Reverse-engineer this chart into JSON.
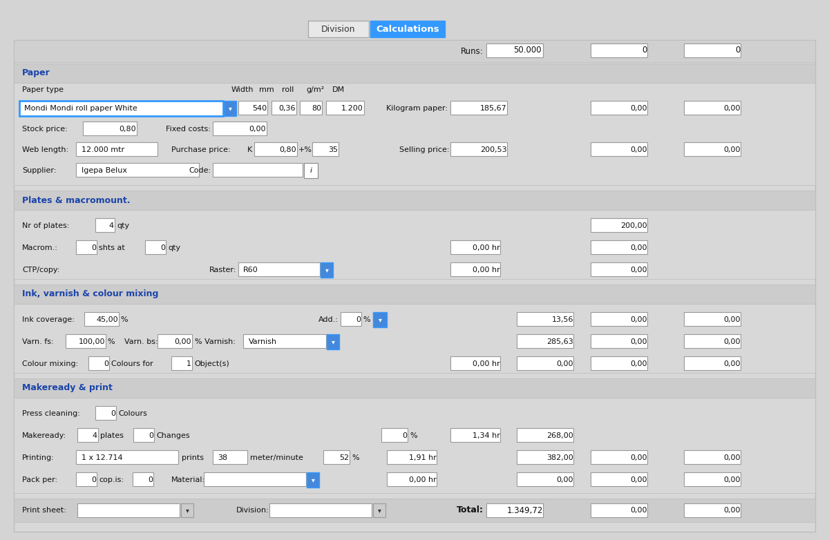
{
  "bg_color": "#d4d4d4",
  "panel_bg": "#d4d4d4",
  "section_bg": "#c8c8c8",
  "white": "#ffffff",
  "blue_btn": "#3399ff",
  "blue_btn2": "#4488dd",
  "section_header_color": "#1a44aa",
  "border_color": "#999999",
  "text_color": "#111111",
  "tab_division_text": "Division",
  "tab_calculations_text": "Calculations",
  "runs_label": "Runs:",
  "runs_val1": "50.000",
  "runs_val2": "0",
  "runs_val3": "0",
  "paper_section": "Paper",
  "paper_type_label": "Paper type",
  "width_label": "Width",
  "mm_label": "mm",
  "roll_label": "roll",
  "gm2_label": "g/m²",
  "dm_label": "DM",
  "paper_type_val": "Mondi Mondi roll paper White",
  "width_val": "540",
  "roll_val": "0,36",
  "gm2_val": "80",
  "dm_val": "1.200",
  "kg_paper_label": "Kilogram paper:",
  "kg_val1": "185,67",
  "kg_val2": "0,00",
  "kg_val3": "0,00",
  "stock_price_label": "Stock price:",
  "stock_price_val": "0,80",
  "fixed_costs_label": "Fixed costs:",
  "fixed_costs_val": "0,00",
  "web_length_label": "Web length:",
  "web_length_val": "12.000 mtr",
  "purchase_price_label": "Purchase price:",
  "purchase_k": "K",
  "purchase_val": "0,80",
  "purchase_plus": "+%",
  "purchase_35": "35",
  "selling_price_label": "Selling price:",
  "sell_val1": "200,53",
  "sell_val2": "0,00",
  "sell_val3": "0,00",
  "supplier_label": "Supplier:",
  "supplier_val": "Igepa Belux",
  "code_label": "Code:",
  "code_i": "i",
  "plates_section": "Plates & macromount.",
  "nr_plates_label": "Nr of plates:",
  "nr_plates_val": "4",
  "nr_plates_qty": "qty",
  "plates_val": "200,00",
  "macrom_label": "Macrom.:",
  "macrom_val": "0",
  "macrom_shts": "shts at",
  "macrom_0": "0",
  "macrom_qty": "qty",
  "macrom_hr": "0,00 hr",
  "macrom_cost": "0,00",
  "ctp_label": "CTP/copy:",
  "raster_label": "Raster:",
  "raster_val": "R60",
  "ctp_hr": "0,00 hr",
  "ctp_cost": "0,00",
  "ink_section": "Ink, varnish & colour mixing",
  "ink_label": "Ink coverage:",
  "ink_val": "45,00",
  "ink_pct": "%",
  "add_label": "Add.:",
  "add_val": "0",
  "add_pct": "%",
  "ink_cost1": "13,56",
  "ink_cost2": "0,00",
  "ink_cost3": "0,00",
  "varn_fs_label": "Varn. fs:",
  "varn_fs_val": "100,00",
  "varn_fs_pct": "%",
  "varn_bs_label": "Varn. bs:",
  "varn_bs_val": "0,00",
  "varn_pct_label": "% Varnish:",
  "varnish_val": "Varnish",
  "varn_cost1": "285,63",
  "varn_cost2": "0,00",
  "varn_cost3": "0,00",
  "colour_label": "Colour mixing:",
  "colour_val": "0",
  "colours_for": "Colours for",
  "colour_1": "1",
  "objects": "Object(s)",
  "colour_hr": "0,00 hr",
  "colour_cost1": "0,00",
  "colour_cost2": "0,00",
  "colour_cost3": "0,00",
  "makeready_section": "Makeready & print",
  "press_clean_label": "Press cleaning:",
  "press_clean_val": "0",
  "colours_text": "Colours",
  "makeready_label": "Makeready:",
  "makeready_val": "4",
  "plates_text": "plates",
  "changes_val": "0",
  "changes_text": "Changes",
  "makeready_pct": "0",
  "makeready_hr": "1,34 hr",
  "makeready_cost": "268,00",
  "printing_label": "Printing:",
  "printing_val": "1 x 12.714",
  "prints_text": "prints",
  "printing_38": "38",
  "meter_per_min": "meter/minute",
  "printing_pct": "52",
  "printing_hr": "1,91 hr",
  "printing_cost": "382,00",
  "printing_cost2": "0,00",
  "printing_cost3": "0,00",
  "pack_label": "Pack per:",
  "pack_val": "0",
  "cop_is": "cop.is:",
  "cop_val": "0",
  "material_label": "Material:",
  "pack_hr": "0,00 hr",
  "pack_cost1": "0,00",
  "pack_cost2": "0,00",
  "pack_cost3": "0,00",
  "print_sheet_label": "Print sheet:",
  "division_label": "Division:",
  "total_label": "Total:",
  "total_val": "1.349,72",
  "total_val2": "0,00",
  "total_val3": "0,00"
}
